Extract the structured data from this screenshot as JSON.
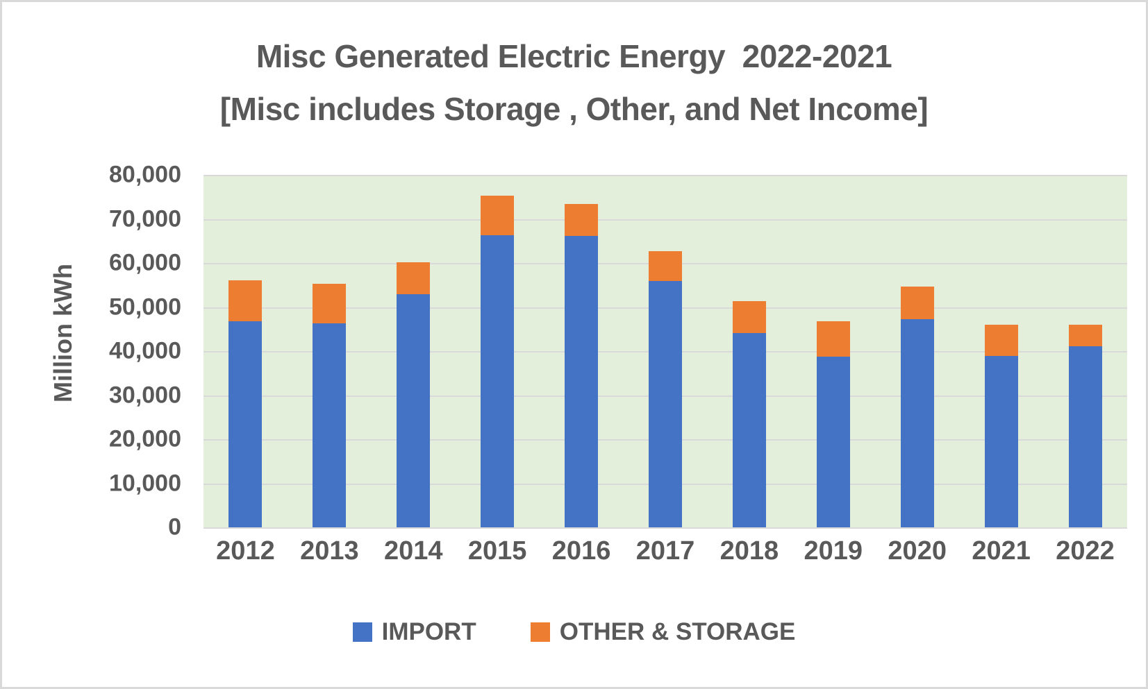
{
  "page": {
    "background": "#ffffff",
    "frame_border_color": "#d9d9d9",
    "text_color": "#595959"
  },
  "chart_data": {
    "type": "bar",
    "stacked": true,
    "title_line1": "Misc Generated Electric Energy  2022-2021",
    "title_line2": "[Misc includes Storage , Other, and Net Income]",
    "xlabel": "",
    "ylabel": "Million kWh",
    "categories": [
      "2012",
      "2013",
      "2014",
      "2015",
      "2016",
      "2017",
      "2018",
      "2019",
      "2020",
      "2021",
      "2022"
    ],
    "series": [
      {
        "name": "IMPORT",
        "color": "#4472c4",
        "values": [
          47000,
          46400,
          53100,
          66500,
          66300,
          56000,
          44300,
          38900,
          47400,
          39100,
          41200
        ]
      },
      {
        "name": "OTHER & STORAGE",
        "color": "#ed7d31",
        "values": [
          9200,
          9100,
          7200,
          9000,
          7200,
          6800,
          7200,
          8100,
          7400,
          7100,
          5000
        ]
      }
    ],
    "stack_totals": [
      56200,
      55500,
      60300,
      75500,
      73500,
      62800,
      51500,
      47000,
      54800,
      46200,
      46200
    ],
    "ylim": [
      0,
      80000
    ],
    "y_ticks": [
      0,
      10000,
      20000,
      30000,
      40000,
      50000,
      60000,
      70000,
      80000
    ],
    "y_tick_labels": [
      "0",
      "10,000",
      "20,000",
      "30,000",
      "40,000",
      "50,000",
      "60,000",
      "70,000",
      "80,000"
    ],
    "grid": "horizontal",
    "grid_color": "#d9d9d9",
    "plot_bg": "#e3efdb",
    "legend_position": "bottom"
  }
}
